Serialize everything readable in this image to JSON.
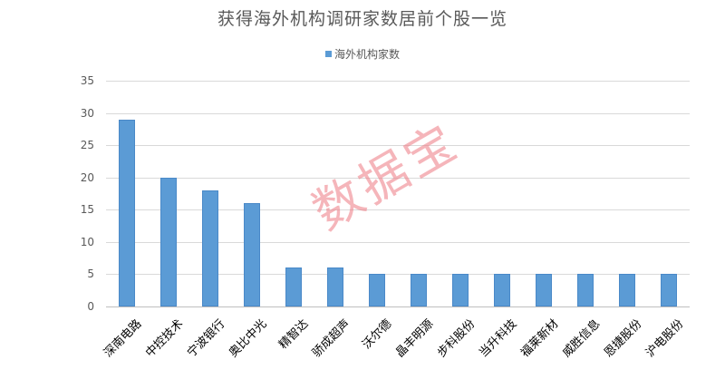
{
  "chart_data": {
    "type": "bar",
    "title": "获得海外机构调研家数居前个股一览",
    "xlabel": "",
    "ylabel": "",
    "ylim": [
      0,
      35
    ],
    "yticks": [
      0,
      5,
      10,
      15,
      20,
      25,
      30,
      35
    ],
    "grid": true,
    "legend_position": "top",
    "categories": [
      "深南电路",
      "中控技术",
      "宁波银行",
      "奥比中光",
      "精智达",
      "骄成超声",
      "沃尔德",
      "晶丰明源",
      "步科股份",
      "当升科技",
      "福莱新材",
      "威胜信息",
      "恩捷股份",
      "沪电股份"
    ],
    "series": [
      {
        "name": "海外机构家数",
        "color": "#5b9bd5",
        "values": [
          29,
          20,
          18,
          16,
          6,
          6,
          5,
          5,
          5,
          5,
          5,
          5,
          5,
          5
        ]
      }
    ]
  },
  "watermark": "数据宝"
}
